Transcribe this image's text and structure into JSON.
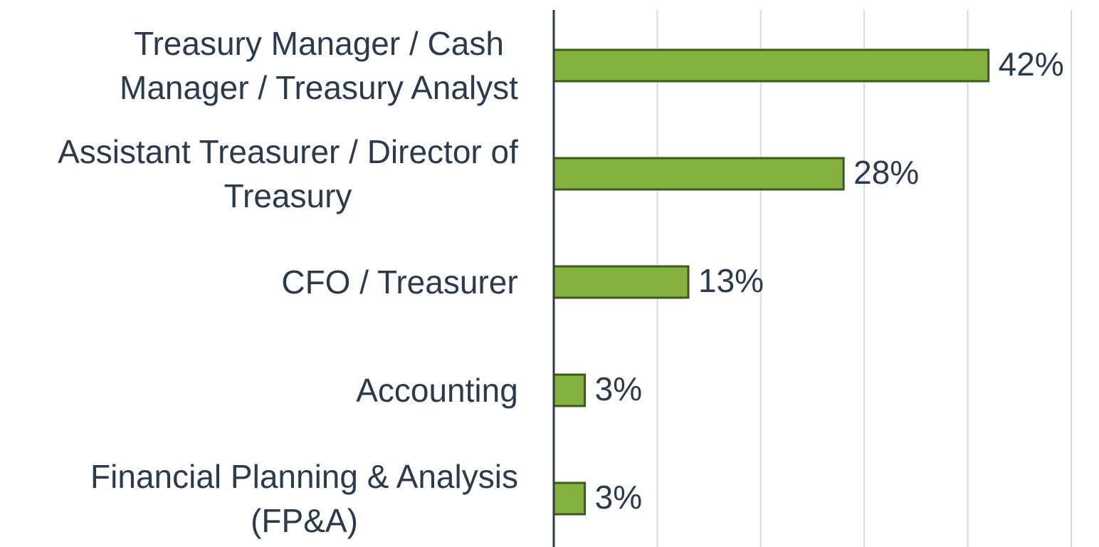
{
  "chart_data": {
    "type": "barh",
    "categories": [
      "Treasury Manager / Cash Manager / Treasury Analyst",
      "Assistant Treasurer / Director of Treasury",
      "CFO / Treasurer",
      "Accounting",
      "Financial Planning & Analysis (FP&A)"
    ],
    "values": [
      42,
      28,
      13,
      3,
      3
    ],
    "value_labels": [
      "42%",
      "28%",
      "13%",
      "3%",
      "3%"
    ],
    "color": "#84b140",
    "xlim": [
      0,
      50
    ],
    "xticks": [
      0,
      10,
      20,
      30,
      40,
      50
    ],
    "grid": true
  }
}
